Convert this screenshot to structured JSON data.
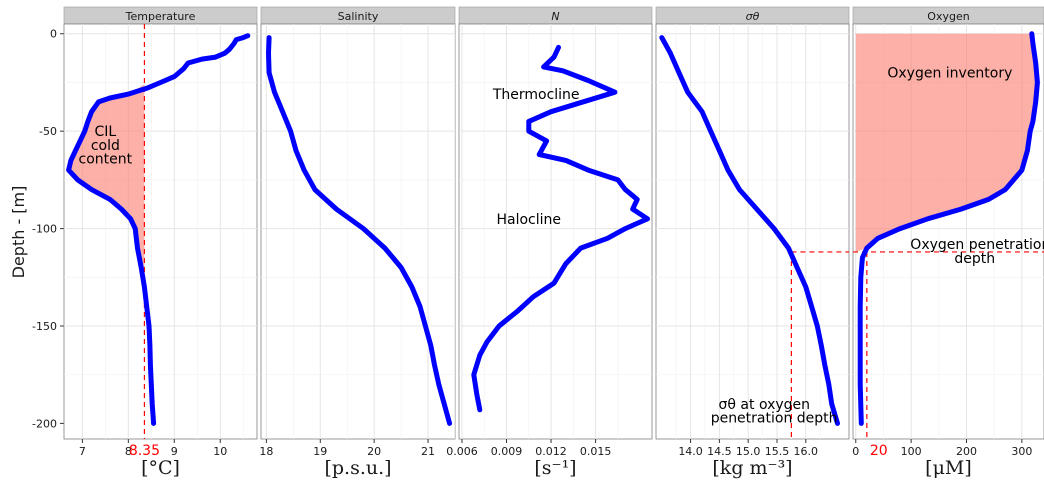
{
  "chart_data": {
    "type": "line",
    "faceted": true,
    "ylabel": "Depth - [m]",
    "ylim": [
      -208,
      5
    ],
    "y_ticks": [
      0,
      -50,
      -100,
      -150,
      -200
    ],
    "grid": true,
    "line_color": "#0000ff",
    "fill_color": "#fa8072",
    "ref_line_color": "#ff0000",
    "panels": [
      {
        "strip": "Temperature",
        "strip_style": "plain",
        "unit_label": "[°C]",
        "xlim": [
          6.6,
          10.8
        ],
        "x_ticks": [
          7,
          8,
          9,
          10
        ],
        "points": [
          [
            8.55,
            -200
          ],
          [
            8.52,
            -190
          ],
          [
            8.5,
            -180
          ],
          [
            8.48,
            -170
          ],
          [
            8.47,
            -160
          ],
          [
            8.45,
            -150
          ],
          [
            8.4,
            -140
          ],
          [
            8.35,
            -130
          ],
          [
            8.28,
            -120
          ],
          [
            8.2,
            -110
          ],
          [
            8.15,
            -100
          ],
          [
            8.05,
            -95
          ],
          [
            7.85,
            -90
          ],
          [
            7.6,
            -85
          ],
          [
            7.2,
            -80
          ],
          [
            6.9,
            -75
          ],
          [
            6.7,
            -70
          ],
          [
            6.75,
            -65
          ],
          [
            6.85,
            -60
          ],
          [
            6.95,
            -55
          ],
          [
            7.05,
            -50
          ],
          [
            7.12,
            -45
          ],
          [
            7.2,
            -40
          ],
          [
            7.35,
            -35
          ],
          [
            7.6,
            -33
          ],
          [
            8.0,
            -31
          ],
          [
            8.4,
            -28
          ],
          [
            8.7,
            -25
          ],
          [
            9.0,
            -22
          ],
          [
            9.2,
            -18
          ],
          [
            9.3,
            -15
          ],
          [
            9.6,
            -13
          ],
          [
            9.9,
            -12
          ],
          [
            10.1,
            -10
          ],
          [
            10.2,
            -8
          ],
          [
            10.3,
            -5
          ],
          [
            10.35,
            -3
          ],
          [
            10.5,
            -2
          ],
          [
            10.6,
            -1
          ]
        ],
        "fill_points": [
          [
            8.35,
            -26
          ],
          [
            8.0,
            -31
          ],
          [
            7.6,
            -33
          ],
          [
            7.35,
            -35
          ],
          [
            7.2,
            -40
          ],
          [
            7.12,
            -45
          ],
          [
            7.05,
            -50
          ],
          [
            6.95,
            -55
          ],
          [
            6.85,
            -60
          ],
          [
            6.75,
            -65
          ],
          [
            6.7,
            -70
          ],
          [
            6.9,
            -75
          ],
          [
            7.2,
            -80
          ],
          [
            7.6,
            -85
          ],
          [
            7.85,
            -90
          ],
          [
            8.05,
            -95
          ],
          [
            8.15,
            -100
          ],
          [
            8.2,
            -110
          ],
          [
            8.28,
            -120
          ],
          [
            8.35,
            -128
          ]
        ],
        "vline": 8.35,
        "vline_label": "8.35",
        "annotations": [
          {
            "text": "CIL",
            "x": 7.5,
            "y": -50
          },
          {
            "text": "cold",
            "x": 7.5,
            "y": -57
          },
          {
            "text": "content",
            "x": 7.5,
            "y": -64
          }
        ]
      },
      {
        "strip": "Salinity",
        "strip_style": "plain",
        "unit_label": "[p.s.u.]",
        "xlim": [
          17.9,
          21.5
        ],
        "x_ticks": [
          18,
          19,
          20,
          21
        ],
        "x_tick_labels": [
          "18",
          "19",
          "20",
          "21"
        ],
        "points": [
          [
            18.05,
            -2
          ],
          [
            18.04,
            -10
          ],
          [
            18.05,
            -20
          ],
          [
            18.15,
            -30
          ],
          [
            18.3,
            -40
          ],
          [
            18.45,
            -50
          ],
          [
            18.55,
            -60
          ],
          [
            18.7,
            -70
          ],
          [
            18.9,
            -80
          ],
          [
            19.3,
            -90
          ],
          [
            19.8,
            -100
          ],
          [
            20.2,
            -110
          ],
          [
            20.5,
            -120
          ],
          [
            20.7,
            -130
          ],
          [
            20.85,
            -140
          ],
          [
            20.95,
            -150
          ],
          [
            21.05,
            -160
          ],
          [
            21.12,
            -170
          ],
          [
            21.2,
            -180
          ],
          [
            21.3,
            -190
          ],
          [
            21.4,
            -200
          ]
        ]
      },
      {
        "strip": "N",
        "strip_style": "italic",
        "unit_label": "[s⁻¹]",
        "xlim": [
          0.0058,
          0.0188
        ],
        "x_ticks": [
          0.006,
          0.009,
          0.012,
          0.015
        ],
        "x_tick_labels": [
          "0.006",
          "0.009",
          "0.012",
          "0.015"
        ],
        "points": [
          [
            0.0125,
            -7
          ],
          [
            0.0122,
            -12
          ],
          [
            0.0115,
            -17
          ],
          [
            0.0128,
            -19
          ],
          [
            0.0145,
            -24
          ],
          [
            0.0163,
            -30
          ],
          [
            0.012,
            -40
          ],
          [
            0.0105,
            -45
          ],
          [
            0.0105,
            -50
          ],
          [
            0.0117,
            -55
          ],
          [
            0.0112,
            -62
          ],
          [
            0.013,
            -65
          ],
          [
            0.0145,
            -70
          ],
          [
            0.0165,
            -75
          ],
          [
            0.017,
            -80
          ],
          [
            0.0178,
            -85
          ],
          [
            0.0175,
            -90
          ],
          [
            0.0185,
            -95
          ],
          [
            0.017,
            -100
          ],
          [
            0.0158,
            -105
          ],
          [
            0.014,
            -110
          ],
          [
            0.013,
            -118
          ],
          [
            0.0122,
            -128
          ],
          [
            0.0108,
            -135
          ],
          [
            0.0098,
            -142
          ],
          [
            0.0085,
            -150
          ],
          [
            0.0077,
            -158
          ],
          [
            0.0072,
            -165
          ],
          [
            0.0068,
            -175
          ],
          [
            0.007,
            -185
          ],
          [
            0.0072,
            -193
          ]
        ],
        "annotations": [
          {
            "text": "Thermocline",
            "x": 0.011,
            "y": -31
          },
          {
            "text": "Halocline",
            "x": 0.0105,
            "y": -95
          }
        ]
      },
      {
        "strip": "σθ",
        "strip_style": "italic",
        "unit_label": "[kg m⁻³]",
        "xlim": [
          13.4,
          16.75
        ],
        "x_ticks": [
          14.0,
          14.5,
          15.0,
          15.5,
          16.0
        ],
        "x_tick_labels": [
          "14.0",
          "14.5",
          "15.0",
          "15.5",
          "16.0"
        ],
        "points": [
          [
            13.5,
            -2
          ],
          [
            13.65,
            -10
          ],
          [
            13.8,
            -20
          ],
          [
            13.95,
            -30
          ],
          [
            14.2,
            -40
          ],
          [
            14.35,
            -50
          ],
          [
            14.5,
            -60
          ],
          [
            14.65,
            -70
          ],
          [
            14.85,
            -80
          ],
          [
            15.15,
            -90
          ],
          [
            15.45,
            -100
          ],
          [
            15.7,
            -110
          ],
          [
            15.85,
            -120
          ],
          [
            16.0,
            -130
          ],
          [
            16.1,
            -140
          ],
          [
            16.2,
            -150
          ],
          [
            16.27,
            -160
          ],
          [
            16.33,
            -170
          ],
          [
            16.4,
            -180
          ],
          [
            16.45,
            -190
          ],
          [
            16.55,
            -200
          ]
        ],
        "vline": 15.75,
        "hline": -112,
        "annotations": [
          {
            "text": "σθ at oxygen",
            "x": 15.28,
            "y": -190
          },
          {
            "text": "penetration depth",
            "x": 15.45,
            "y": -197
          }
        ]
      },
      {
        "strip": "Oxygen",
        "strip_style": "plain",
        "unit_label": "[μM]",
        "xlim": [
          -5,
          340
        ],
        "x_ticks": [
          0,
          100,
          200,
          300
        ],
        "x_tick_labels": [
          "0",
          "100",
          "200",
          "300"
        ],
        "points": [
          [
            10,
            -200
          ],
          [
            8,
            -180
          ],
          [
            8,
            -160
          ],
          [
            8,
            -140
          ],
          [
            9,
            -125
          ],
          [
            12,
            -115
          ],
          [
            20,
            -110
          ],
          [
            40,
            -105
          ],
          [
            80,
            -100
          ],
          [
            130,
            -95
          ],
          [
            190,
            -90
          ],
          [
            240,
            -85
          ],
          [
            270,
            -80
          ],
          [
            285,
            -75
          ],
          [
            300,
            -70
          ],
          [
            305,
            -65
          ],
          [
            310,
            -60
          ],
          [
            315,
            -50
          ],
          [
            320,
            -45
          ],
          [
            325,
            -35
          ],
          [
            328,
            -25
          ],
          [
            325,
            -15
          ],
          [
            320,
            -5
          ],
          [
            318,
            0
          ]
        ],
        "fill_points": [
          [
            0,
            0
          ],
          [
            318,
            0
          ],
          [
            320,
            -5
          ],
          [
            325,
            -15
          ],
          [
            328,
            -25
          ],
          [
            325,
            -35
          ],
          [
            320,
            -45
          ],
          [
            315,
            -50
          ],
          [
            310,
            -60
          ],
          [
            305,
            -65
          ],
          [
            300,
            -70
          ],
          [
            285,
            -75
          ],
          [
            270,
            -80
          ],
          [
            240,
            -85
          ],
          [
            190,
            -90
          ],
          [
            130,
            -95
          ],
          [
            80,
            -100
          ],
          [
            40,
            -105
          ],
          [
            20,
            -110
          ],
          [
            0,
            -112
          ]
        ],
        "vline": 20,
        "vline_label": "20",
        "hline": -112,
        "annotations": [
          {
            "text": "Oxygen inventory",
            "x": 170,
            "y": -20
          },
          {
            "text": "Oxygen penetration",
            "x": 225,
            "y": -108
          },
          {
            "text": "depth",
            "x": 215,
            "y": -115
          }
        ]
      }
    ]
  }
}
